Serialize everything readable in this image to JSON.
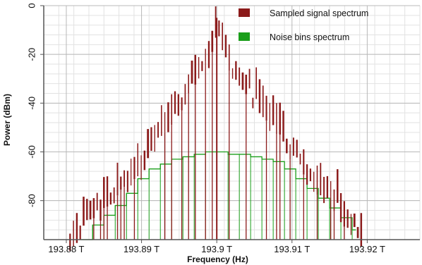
{
  "chart_data": {
    "type": "line",
    "xlabel": "Frequency (Hz)",
    "ylabel": "Power (dBm)",
    "xlim": [
      193.877,
      193.927
    ],
    "ylim": [
      -96,
      0
    ],
    "x_unit_suffix": "T",
    "xticks": [
      193.88,
      193.89,
      193.9,
      193.91,
      193.92
    ],
    "xtick_labels": [
      "193.88 T",
      "193.89 T",
      "193.9 T",
      "193.91 T",
      "193.92 T"
    ],
    "yticks": [
      0,
      -20,
      -40,
      -60,
      -80
    ],
    "ytick_labels": [
      "0",
      "-20",
      "-40",
      "-60",
      "-80"
    ],
    "grid": true,
    "legend_position": "top-right",
    "series": [
      {
        "name": "Sampled signal spectrum",
        "color": "#8b1a1a",
        "style": "stems",
        "peak_x": 193.9,
        "peak_y": -5,
        "envelope": [
          [
            193.8805,
            -96
          ],
          [
            193.8825,
            -88
          ],
          [
            193.885,
            -80
          ],
          [
            193.8875,
            -73
          ],
          [
            193.89,
            -65
          ],
          [
            193.8925,
            -52
          ],
          [
            193.895,
            -40
          ],
          [
            193.8975,
            -27
          ],
          [
            193.899,
            -20
          ],
          [
            193.8998,
            -15
          ],
          [
            193.9,
            -5
          ],
          [
            193.9005,
            -15
          ],
          [
            193.901,
            -18
          ],
          [
            193.9025,
            -27
          ],
          [
            193.905,
            -36
          ],
          [
            193.9075,
            -47
          ],
          [
            193.91,
            -59
          ],
          [
            193.9125,
            -70
          ],
          [
            193.915,
            -76
          ],
          [
            193.9175,
            -86
          ],
          [
            193.9195,
            -96
          ]
        ]
      },
      {
        "name": "Noise bins spectrum",
        "color": "#1a9e1a",
        "style": "steps",
        "bins": [
          [
            193.882,
            -96
          ],
          [
            193.8835,
            -90
          ],
          [
            193.885,
            -86
          ],
          [
            193.8865,
            -82
          ],
          [
            193.888,
            -77
          ],
          [
            193.8895,
            -71
          ],
          [
            193.891,
            -67
          ],
          [
            193.8925,
            -65
          ],
          [
            193.894,
            -63
          ],
          [
            193.8955,
            -62
          ],
          [
            193.897,
            -61
          ],
          [
            193.8985,
            -60
          ],
          [
            193.9,
            -60
          ],
          [
            193.9015,
            -61
          ],
          [
            193.903,
            -61
          ],
          [
            193.9045,
            -62
          ],
          [
            193.906,
            -63
          ],
          [
            193.9075,
            -64
          ],
          [
            193.909,
            -67
          ],
          [
            193.9105,
            -71
          ],
          [
            193.912,
            -75
          ],
          [
            193.9135,
            -79
          ],
          [
            193.915,
            -83
          ],
          [
            193.9165,
            -87
          ],
          [
            193.918,
            -92
          ],
          [
            193.9185,
            -96
          ]
        ]
      }
    ]
  }
}
